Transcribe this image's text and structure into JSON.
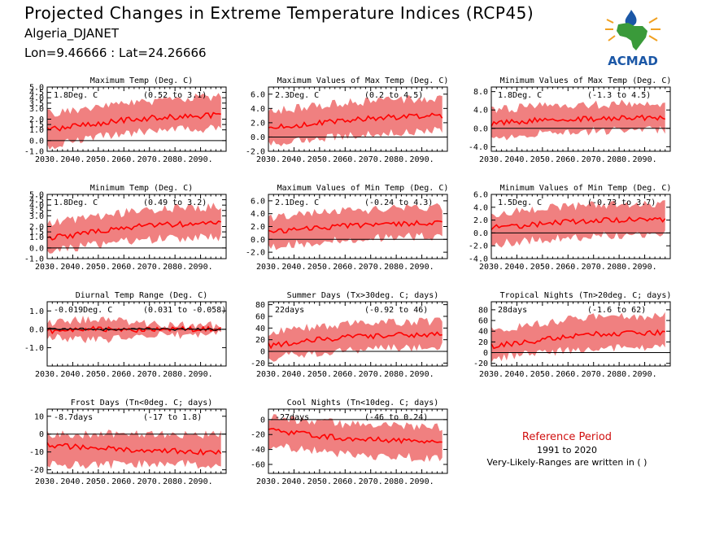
{
  "header": {
    "title": "Projected Changes in Extreme Temperature Indices (RCP45)",
    "region": "Algeria_DJANET",
    "coords": "Lon=9.46666 : Lat=24.26666"
  },
  "logo": {
    "text": "ACMAD",
    "icon": "africa-map-drop-icon",
    "color_green": "#3a9a3a",
    "color_orange": "#f0a020",
    "color_blue": "#1b57a6"
  },
  "reference": {
    "title": "Reference Period",
    "years": "1991 to 2020",
    "note": "Very-Likely-Ranges are written in ( )"
  },
  "colors": {
    "band": "#f08080",
    "line": "#ff0000",
    "obs_line": "#000000"
  },
  "chart_data": [
    {
      "type": "area",
      "title": "Maximum Temp (Deg. C)",
      "mean_label": "1.8Deg. C",
      "range_label": "(0.52 to 3.1)",
      "x_range": [
        2030,
        2100
      ],
      "ylim": [
        -1.0,
        5.0
      ],
      "yticks": [
        -1.0,
        0.0,
        1.0,
        1.5,
        2.0,
        3.0,
        3.5,
        4.0,
        4.5,
        5.0
      ],
      "ytick_labels": [
        "-1.0",
        "0.0",
        "1.0",
        "1.5",
        "2.0",
        "3.0",
        "3.5",
        "4.0",
        "4.5",
        "5.0"
      ],
      "xtick_labels": [
        "2030.",
        "2040.",
        "2050.",
        "2060.",
        "2070.",
        "2080.",
        "2090."
      ],
      "series": [
        {
          "x": [
            2030,
            2040,
            2050,
            2060,
            2070,
            2080,
            2090,
            2100
          ],
          "y": [
            1.0,
            1.3,
            1.6,
            1.9,
            2.1,
            2.2,
            2.3,
            2.4
          ]
        }
      ],
      "band": {
        "low": [
          -0.5,
          -0.1,
          0.3,
          0.6,
          0.9,
          1.0,
          1.1,
          1.2
        ],
        "high": [
          2.5,
          2.8,
          3.1,
          3.4,
          3.7,
          3.9,
          4.0,
          4.1
        ]
      }
    },
    {
      "type": "area",
      "title": "Maximum Values of Max Temp (Deg. C)",
      "mean_label": "2.3Deg. C",
      "range_label": "(0.2 to 4.5)",
      "x_range": [
        2030,
        2100
      ],
      "ylim": [
        -2.0,
        7.0
      ],
      "yticks": [
        -2.0,
        0.0,
        2.0,
        4.0,
        6.0
      ],
      "ytick_labels": [
        "-2.0",
        "0.0",
        "2.0",
        "4.0",
        "6.0"
      ],
      "xtick_labels": [
        "2030.",
        "2040.",
        "2050.",
        "2060.",
        "2070.",
        "2080.",
        "2090."
      ],
      "series": [
        {
          "x": [
            2030,
            2040,
            2050,
            2060,
            2070,
            2080,
            2090,
            2100
          ],
          "y": [
            1.3,
            1.6,
            2.0,
            2.4,
            2.6,
            2.8,
            2.9,
            3.0
          ]
        }
      ],
      "band": {
        "low": [
          -1.0,
          -0.6,
          -0.2,
          0.2,
          0.5,
          0.7,
          0.8,
          0.9
        ],
        "high": [
          3.6,
          4.0,
          4.4,
          4.8,
          5.0,
          5.2,
          5.3,
          5.4
        ]
      }
    },
    {
      "type": "area",
      "title": "Minimum Values of Max Temp (Deg. C)",
      "mean_label": "1.8Deg. C",
      "range_label": "(-1.3 to 4.5)",
      "x_range": [
        2030,
        2100
      ],
      "ylim": [
        -5.0,
        9.0
      ],
      "yticks": [
        -4.0,
        0.0,
        4.0,
        8.0
      ],
      "ytick_labels": [
        "-4.0",
        "0.0",
        "4.0",
        "8.0"
      ],
      "xtick_labels": [
        "2030.",
        "2040.",
        "2050.",
        "2060.",
        "2070.",
        "2080.",
        "2090."
      ],
      "series": [
        {
          "x": [
            2030,
            2040,
            2050,
            2060,
            2070,
            2080,
            2090,
            2100
          ],
          "y": [
            1.0,
            1.4,
            1.8,
            2.0,
            2.1,
            2.2,
            2.3,
            2.4
          ]
        }
      ],
      "band": {
        "low": [
          -2.0,
          -1.5,
          -1.1,
          -0.8,
          -0.6,
          -0.5,
          -0.4,
          -0.3
        ],
        "high": [
          4.0,
          4.4,
          4.8,
          5.0,
          5.2,
          5.3,
          5.4,
          5.5
        ]
      }
    },
    {
      "type": "area",
      "title": "Minimum Temp (Deg. C)",
      "mean_label": "1.8Deg. C",
      "range_label": "(0.49 to 3.2)",
      "x_range": [
        2030,
        2100
      ],
      "ylim": [
        -1.0,
        5.0
      ],
      "yticks": [
        -1.0,
        0.0,
        1.0,
        1.5,
        2.0,
        3.0,
        3.5,
        4.0,
        4.5,
        5.0
      ],
      "ytick_labels": [
        "-1.0",
        "0.0",
        "1.0",
        "1.5",
        "2.0",
        "3.0",
        "3.5",
        "4.0",
        "4.5",
        "5.0"
      ],
      "xtick_labels": [
        "2030.",
        "2040.",
        "2050.",
        "2060.",
        "2070.",
        "2080.",
        "2090."
      ],
      "series": [
        {
          "x": [
            2030,
            2040,
            2050,
            2060,
            2070,
            2080,
            2090,
            2100
          ],
          "y": [
            0.9,
            1.2,
            1.6,
            1.9,
            2.1,
            2.2,
            2.3,
            2.3
          ]
        }
      ],
      "band": {
        "low": [
          -0.4,
          0.0,
          0.3,
          0.6,
          0.8,
          0.9,
          1.0,
          1.0
        ],
        "high": [
          2.3,
          2.6,
          3.0,
          3.3,
          3.5,
          3.7,
          3.8,
          3.8
        ]
      }
    },
    {
      "type": "area",
      "title": "Maximum Values of Min Temp (Deg. C)",
      "mean_label": "2.1Deg. C",
      "range_label": "(-0.24 to 4.3)",
      "x_range": [
        2030,
        2100
      ],
      "ylim": [
        -3.0,
        7.0
      ],
      "yticks": [
        -2.0,
        0.0,
        2.0,
        4.0,
        6.0
      ],
      "ytick_labels": [
        "-2.0",
        "0.0",
        "2.0",
        "4.0",
        "6.0"
      ],
      "xtick_labels": [
        "2030.",
        "2040.",
        "2050.",
        "2060.",
        "2070.",
        "2080.",
        "2090."
      ],
      "series": [
        {
          "x": [
            2030,
            2040,
            2050,
            2060,
            2070,
            2080,
            2090,
            2100
          ],
          "y": [
            1.2,
            1.5,
            1.8,
            2.1,
            2.3,
            2.4,
            2.6,
            2.7
          ]
        }
      ],
      "band": {
        "low": [
          -1.2,
          -0.8,
          -0.4,
          0.0,
          0.2,
          0.3,
          0.4,
          0.5
        ],
        "high": [
          3.4,
          3.8,
          4.1,
          4.4,
          4.6,
          4.8,
          4.9,
          5.0
        ]
      }
    },
    {
      "type": "area",
      "title": "Minimum Values of Min Temp (Deg. C)",
      "mean_label": "1.5Deg. C",
      "range_label": "(-0.73 to 3.7)",
      "x_range": [
        2030,
        2100
      ],
      "ylim": [
        -4.0,
        6.0
      ],
      "yticks": [
        -4.0,
        -2.0,
        0.0,
        2.0,
        4.0,
        6.0
      ],
      "ytick_labels": [
        "-4.0",
        "-2.0",
        "0.0",
        "2.0",
        "4.0",
        "6.0"
      ],
      "xtick_labels": [
        "2030.",
        "2040.",
        "2050.",
        "2060.",
        "2070.",
        "2080.",
        "2090."
      ],
      "series": [
        {
          "x": [
            2030,
            2040,
            2050,
            2060,
            2070,
            2080,
            2090,
            2100
          ],
          "y": [
            0.8,
            1.1,
            1.4,
            1.7,
            1.9,
            2.0,
            2.1,
            2.2
          ]
        }
      ],
      "band": {
        "low": [
          -1.8,
          -1.4,
          -1.0,
          -0.7,
          -0.5,
          -0.4,
          -0.3,
          -0.2
        ],
        "high": [
          3.0,
          3.4,
          3.8,
          4.1,
          4.3,
          4.4,
          4.5,
          4.6
        ]
      }
    },
    {
      "type": "area",
      "title": "Diurnal Temp Range (Deg. C)",
      "mean_label": "-0.019Deg. C",
      "range_label": "(0.031 to -0.058)",
      "x_range": [
        2030,
        2100
      ],
      "ylim": [
        -2.0,
        1.5
      ],
      "yticks": [
        -1.0,
        0.0,
        1.0
      ],
      "ytick_labels": [
        "-1.0",
        "0.0",
        "1.0"
      ],
      "xtick_labels": [
        "2030.",
        "2040.",
        "2050.",
        "2060.",
        "2070.",
        "2080.",
        "2090."
      ],
      "series": [
        {
          "x": [
            2030,
            2040,
            2050,
            2060,
            2070,
            2080,
            2090,
            2100
          ],
          "y": [
            -0.1,
            0.0,
            0.0,
            -0.05,
            0.0,
            0.0,
            0.0,
            -0.02
          ]
        },
        {
          "x": [
            2030,
            2040,
            2050,
            2060,
            2070,
            2080,
            2090,
            2100
          ],
          "y": [
            0.0,
            0.0,
            0.0,
            0.0,
            0.0,
            0.0,
            0.0,
            0.0
          ]
        }
      ],
      "band": {
        "low": [
          -0.4,
          -0.5,
          -0.6,
          -0.5,
          -0.3,
          -0.3,
          -0.3,
          -0.3
        ],
        "high": [
          0.3,
          0.5,
          0.6,
          0.5,
          0.3,
          0.2,
          0.2,
          0.2
        ]
      }
    },
    {
      "type": "area",
      "title": "Summer Days (Tx>30deg. C; days)",
      "mean_label": "22days",
      "range_label": "(-0.92 to 46)",
      "x_range": [
        2030,
        2100
      ],
      "ylim": [
        -25,
        85
      ],
      "yticks": [
        -20,
        0,
        20,
        40,
        60,
        80
      ],
      "ytick_labels": [
        "-20",
        "0",
        "20",
        "40",
        "60",
        "80"
      ],
      "xtick_labels": [
        "2030.",
        "2040.",
        "2050.",
        "2060.",
        "2070.",
        "2080.",
        "2090."
      ],
      "series": [
        {
          "x": [
            2030,
            2040,
            2050,
            2060,
            2070,
            2080,
            2090,
            2100
          ],
          "y": [
            10,
            15,
            20,
            24,
            26,
            28,
            29,
            30
          ]
        }
      ],
      "band": {
        "low": [
          -12,
          -6,
          -2,
          2,
          5,
          6,
          7,
          8
        ],
        "high": [
          34,
          38,
          42,
          46,
          48,
          50,
          51,
          52
        ]
      }
    },
    {
      "type": "area",
      "title": "Tropical Nights (Tn>20deg. C; days)",
      "mean_label": "28days",
      "range_label": "(-1.6 to 62)",
      "x_range": [
        2030,
        2100
      ],
      "ylim": [
        -25,
        95
      ],
      "yticks": [
        -20,
        0,
        20,
        40,
        60,
        80
      ],
      "ytick_labels": [
        "-20",
        "0",
        "20",
        "40",
        "60",
        "80"
      ],
      "xtick_labels": [
        "2030.",
        "2040.",
        "2050.",
        "2060.",
        "2070.",
        "2080.",
        "2090."
      ],
      "series": [
        {
          "x": [
            2030,
            2040,
            2050,
            2060,
            2070,
            2080,
            2090,
            2100
          ],
          "y": [
            12,
            18,
            24,
            30,
            34,
            36,
            37,
            38
          ]
        }
      ],
      "band": {
        "low": [
          -10,
          -5,
          0,
          4,
          8,
          10,
          11,
          12
        ],
        "high": [
          42,
          48,
          55,
          62,
          66,
          68,
          69,
          70
        ]
      }
    },
    {
      "type": "area",
      "title": "Frost Days (Tn<0deg. C; days)",
      "mean_label": "-8.7days",
      "range_label": "(-17 to 1.8)",
      "x_range": [
        2030,
        2100
      ],
      "ylim": [
        -22,
        14
      ],
      "yticks": [
        -20,
        -10,
        0,
        10
      ],
      "ytick_labels": [
        "-20",
        "-10",
        "0",
        "10"
      ],
      "xtick_labels": [
        "2030.",
        "2040.",
        "2050.",
        "2060.",
        "2070.",
        "2080.",
        "2090."
      ],
      "series": [
        {
          "x": [
            2030,
            2040,
            2050,
            2060,
            2070,
            2080,
            2090,
            2100
          ],
          "y": [
            -6,
            -7,
            -8,
            -8.5,
            -9,
            -9.5,
            -10,
            -10.5
          ]
        }
      ],
      "band": {
        "low": [
          -17,
          -17,
          -17,
          -17,
          -17,
          -17,
          -17,
          -17
        ],
        "high": [
          0,
          0,
          0,
          0,
          0,
          0,
          0,
          0
        ]
      }
    },
    {
      "type": "area",
      "title": "Cool Nights (Tn<10deg. C; days)",
      "mean_label": "-27days",
      "range_label": "(-46 to 0.24)",
      "x_range": [
        2030,
        2100
      ],
      "ylim": [
        -72,
        14
      ],
      "yticks": [
        -60,
        -40,
        -20,
        0
      ],
      "ytick_labels": [
        "-60",
        "-40",
        "-20",
        "0"
      ],
      "xtick_labels": [
        "2030.",
        "2040.",
        "2050.",
        "2060.",
        "2070.",
        "2080.",
        "2090."
      ],
      "series": [
        {
          "x": [
            2030,
            2040,
            2050,
            2060,
            2070,
            2080,
            2090,
            2100
          ],
          "y": [
            -14,
            -18,
            -22,
            -25,
            -27,
            -28,
            -29,
            -30
          ]
        }
      ],
      "band": {
        "low": [
          -34,
          -38,
          -42,
          -46,
          -48,
          -50,
          -51,
          -52
        ],
        "high": [
          4,
          0,
          -3,
          -6,
          -8,
          -9,
          -10,
          -10
        ]
      }
    }
  ]
}
